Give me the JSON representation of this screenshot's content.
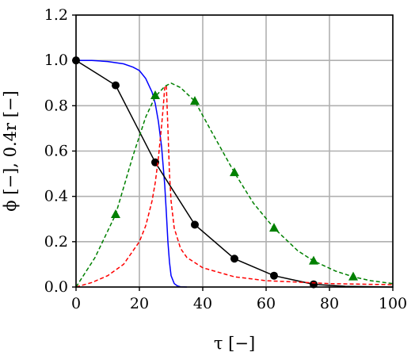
{
  "chart_data": {
    "type": "line",
    "xlabel": "τ [−]",
    "ylabel": "ϕ [−],  0.4r [−]",
    "xlim": [
      0,
      100
    ],
    "ylim": [
      0,
      1.2
    ],
    "xticks": [
      0,
      20,
      40,
      60,
      80,
      100
    ],
    "yticks": [
      0.0,
      0.2,
      0.4,
      0.6,
      0.8,
      1.0,
      1.2
    ],
    "xtick_labels": [
      "0",
      "20",
      "40",
      "60",
      "80",
      "100"
    ],
    "ytick_labels": [
      "0.0",
      "0.2",
      "0.4",
      "0.6",
      "0.8",
      "1.0",
      "1.2"
    ],
    "grid": true,
    "series": [
      {
        "color": "#0000ff",
        "line": "solid",
        "marker": "none",
        "x": [
          0,
          5,
          10,
          15,
          18,
          20,
          22,
          24,
          25,
          26,
          27,
          28,
          28.5,
          29,
          29.5,
          30,
          31,
          32,
          33,
          35
        ],
        "y": [
          1.0,
          1.0,
          0.995,
          0.985,
          0.97,
          0.955,
          0.92,
          0.86,
          0.81,
          0.73,
          0.62,
          0.45,
          0.33,
          0.2,
          0.11,
          0.05,
          0.015,
          0.005,
          0.001,
          0.0
        ]
      },
      {
        "color": "#000000",
        "line": "solid",
        "marker": "circle",
        "x": [
          0,
          12.5,
          25,
          37.5,
          50,
          62.5,
          75,
          85,
          100
        ],
        "y": [
          1.0,
          0.89,
          0.55,
          0.275,
          0.125,
          0.05,
          0.012,
          0.003,
          0.0
        ],
        "marker_x": [
          0,
          12.5,
          25,
          37.5,
          50,
          62.5,
          75
        ],
        "marker_y": [
          1.0,
          0.89,
          0.55,
          0.275,
          0.125,
          0.05,
          0.012
        ]
      },
      {
        "color": "#ff0000",
        "line": "dashed",
        "marker": "none",
        "x": [
          0,
          5,
          10,
          15,
          20,
          22,
          24,
          25,
          26,
          27,
          27.5,
          28,
          28.5,
          29,
          29.5,
          30,
          31,
          33,
          35,
          40,
          50,
          60,
          80,
          100
        ],
        "y": [
          0.0,
          0.02,
          0.05,
          0.1,
          0.2,
          0.27,
          0.38,
          0.46,
          0.57,
          0.71,
          0.79,
          0.88,
          0.89,
          0.7,
          0.5,
          0.38,
          0.26,
          0.17,
          0.13,
          0.085,
          0.045,
          0.028,
          0.015,
          0.01
        ]
      },
      {
        "color": "#008000",
        "line": "dashed",
        "marker": "triangle",
        "x": [
          0,
          6,
          12.5,
          18,
          22,
          25,
          28,
          30,
          33,
          37.5,
          43,
          50,
          56,
          62.5,
          70,
          75,
          82,
          87.5,
          93,
          100
        ],
        "y": [
          0.0,
          0.13,
          0.32,
          0.58,
          0.75,
          0.84,
          0.885,
          0.9,
          0.88,
          0.82,
          0.68,
          0.505,
          0.37,
          0.26,
          0.16,
          0.115,
          0.07,
          0.045,
          0.028,
          0.015
        ],
        "marker_x": [
          12.5,
          25,
          37.5,
          50,
          62.5,
          75,
          87.5
        ],
        "marker_y": [
          0.32,
          0.845,
          0.82,
          0.505,
          0.26,
          0.115,
          0.045
        ]
      }
    ]
  }
}
